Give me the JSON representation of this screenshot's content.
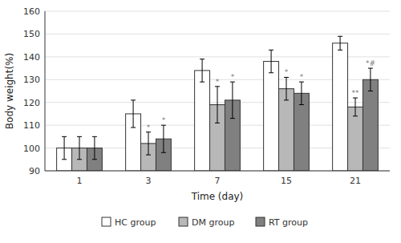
{
  "chart_data": {
    "type": "bar",
    "xlabel": "Time (day)",
    "ylabel": "Body weight(%)",
    "categories": [
      "1",
      "3",
      "7",
      "15",
      "21"
    ],
    "series": [
      {
        "name": "HC group",
        "color": "#ffffff",
        "values": [
          100,
          115,
          134,
          138,
          146
        ],
        "errors": [
          5,
          6,
          5,
          5,
          3
        ]
      },
      {
        "name": "DM group",
        "color": "#b8b8b8",
        "values": [
          100,
          102,
          119,
          126,
          118
        ],
        "errors": [
          5,
          5,
          8,
          5,
          4
        ]
      },
      {
        "name": "RT group",
        "color": "#808080",
        "values": [
          100,
          104,
          121,
          124,
          130
        ],
        "errors": [
          5,
          6,
          8,
          5,
          5
        ]
      }
    ],
    "annotations": [
      {
        "text": "*",
        "series": "DM group",
        "category": "3"
      },
      {
        "text": "*",
        "series": "RT group",
        "category": "3"
      },
      {
        "text": "*",
        "series": "DM group",
        "category": "7"
      },
      {
        "text": "*",
        "series": "RT group",
        "category": "7"
      },
      {
        "text": "*",
        "series": "DM group",
        "category": "15"
      },
      {
        "text": "*",
        "series": "RT group",
        "category": "15"
      },
      {
        "text": "**",
        "series": "DM group",
        "category": "21"
      },
      {
        "text": "*#",
        "series": "RT group",
        "category": "21"
      }
    ],
    "ylim": [
      90,
      160
    ],
    "yticks": [
      90,
      100,
      110,
      120,
      130,
      140,
      150,
      160
    ],
    "grid": true,
    "legend": "bottom"
  }
}
